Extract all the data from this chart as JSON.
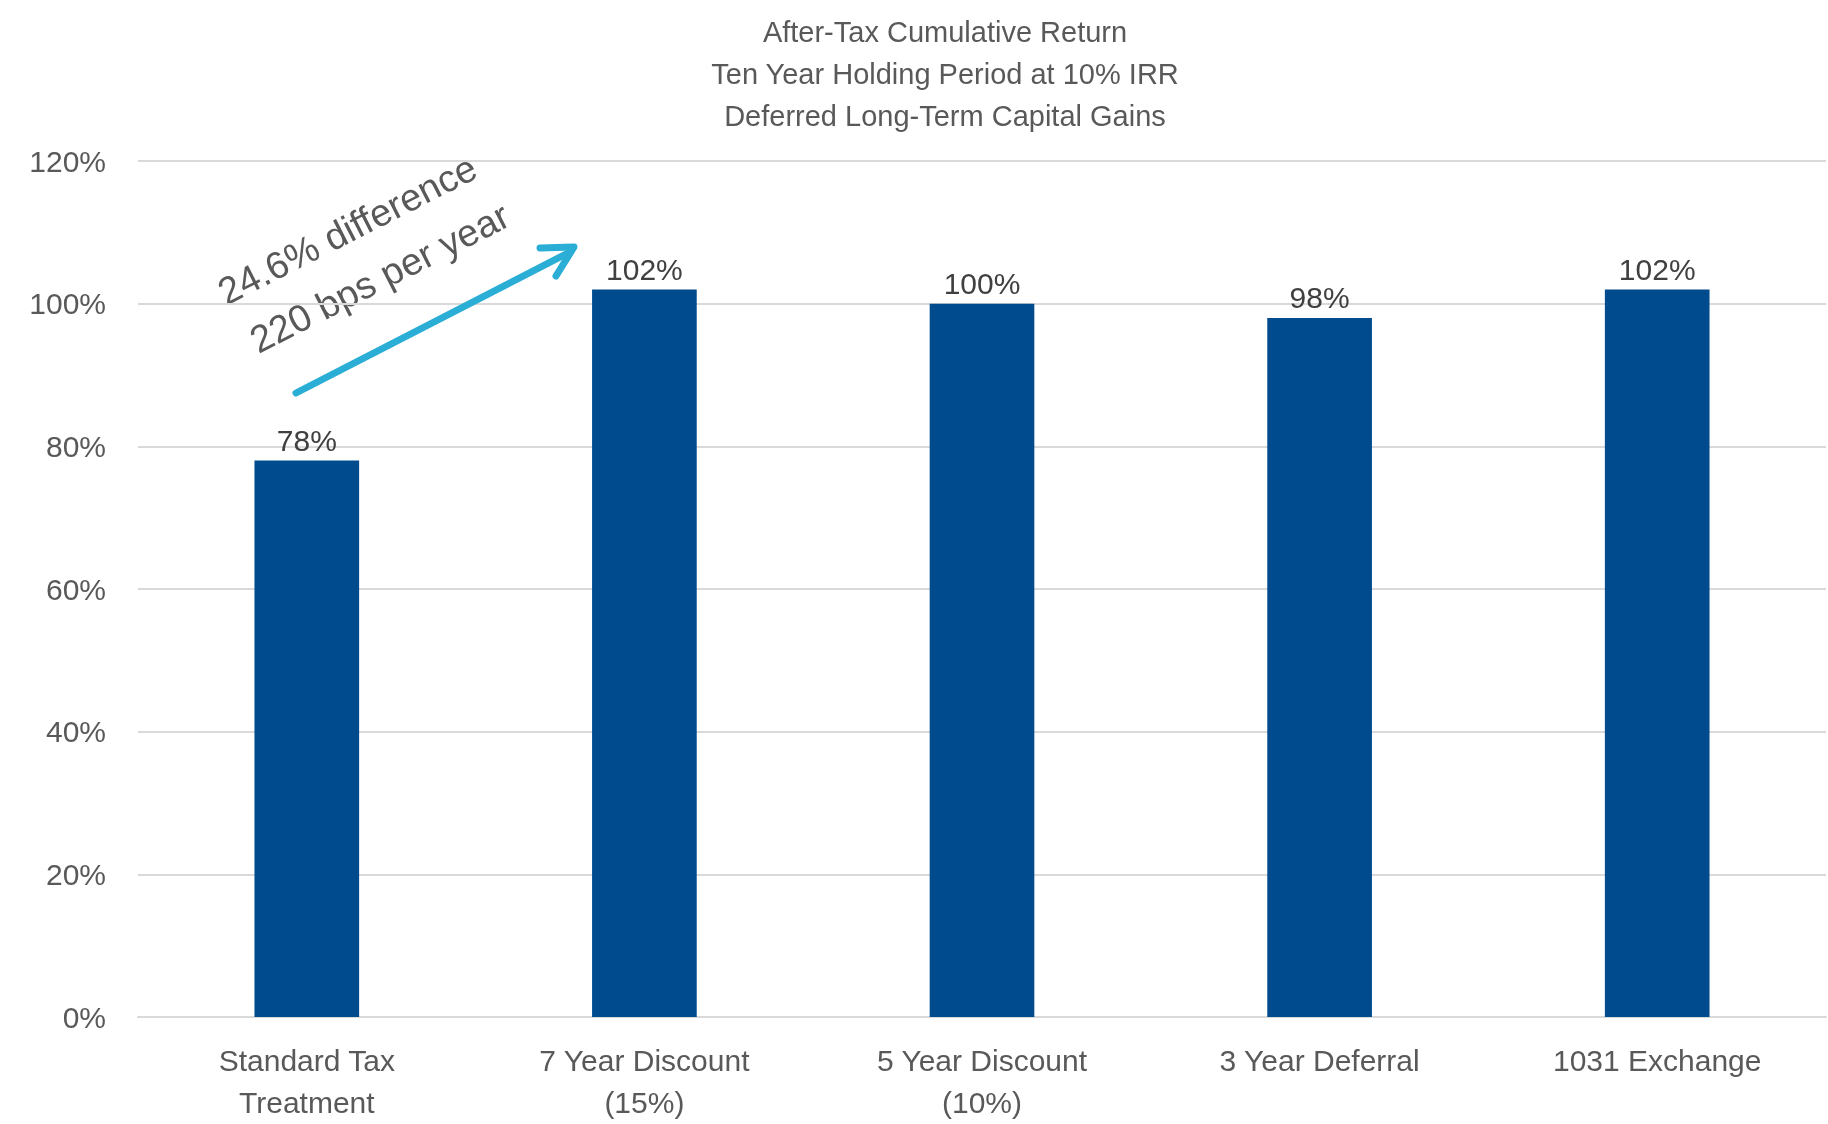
{
  "chart_data": {
    "type": "bar",
    "title": "After-Tax Cumulative Return\nTen Year Holding Period at 10% IRR\nDeferred Long-Term Capital Gains",
    "categories": [
      "Standard Tax\nTreatment",
      "7 Year Discount\n(15%)",
      "5 Year Discount\n(10%)",
      "3 Year Deferral",
      "1031 Exchange"
    ],
    "values": [
      78,
      102,
      100,
      98,
      102
    ],
    "color": "#004b8d",
    "value_labels": [
      "78%",
      "102%",
      "100%",
      "98%",
      "102%"
    ],
    "ylim": [
      0,
      120
    ],
    "yticks": [
      {
        "value": 0,
        "label": "0%"
      },
      {
        "value": 20,
        "label": "20%"
      },
      {
        "value": 40,
        "label": "40%"
      },
      {
        "value": 60,
        "label": "60%"
      },
      {
        "value": 80,
        "label": "80%"
      },
      {
        "value": 100,
        "label": "100%"
      },
      {
        "value": 120,
        "label": "120%"
      }
    ],
    "grid": "y",
    "annotations": [
      "24.6% difference",
      "220 bps per year"
    ]
  }
}
